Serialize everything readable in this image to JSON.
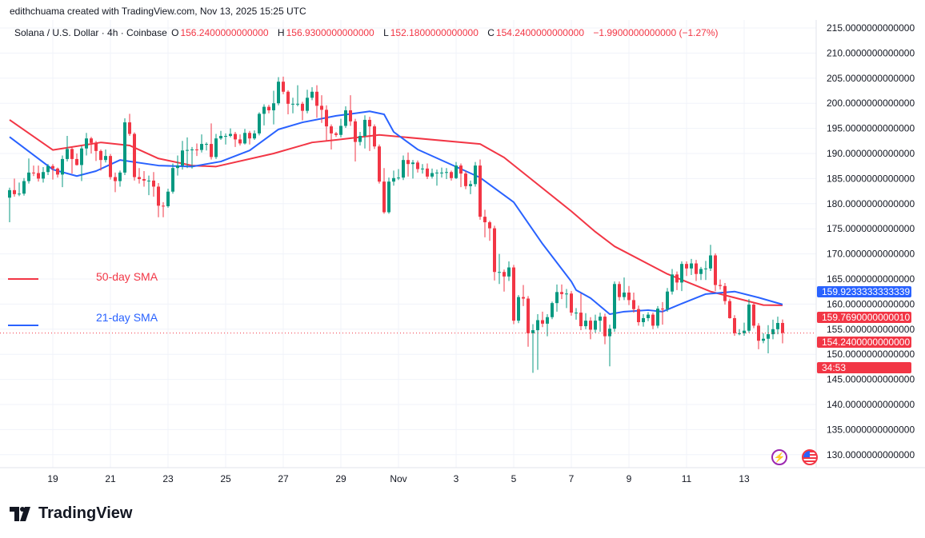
{
  "credit": "edithchuama created with TradingView.com, Nov 13, 2025 15:25 UTC",
  "legend": {
    "symbol": "Solana / U.S. Dollar · 4h · Coinbase",
    "o_label": "O",
    "o": "156.2400000000000",
    "h_label": "H",
    "h": "156.9300000000000",
    "l_label": "L",
    "l": "152.1800000000000",
    "c_label": "C",
    "c": "154.2400000000000",
    "change": "−1.9900000000000 (−1.27%)"
  },
  "indicators": {
    "sma50_label": "50-day SMA",
    "sma21_label": "21-day SMA"
  },
  "badges": {
    "sma21_value": "159.9233333333339",
    "sma50_value": "159.7690000000010",
    "last_price": "154.2400000000000",
    "countdown": "34:53"
  },
  "colors": {
    "up": "#089981",
    "down": "#F23645",
    "sma50": "#F23645",
    "sma21": "#2962FF",
    "grid": "#F0F3FA"
  },
  "icons": {
    "alert": "lightning-alert-icon",
    "flag": "us-flag-icon"
  },
  "logo": "TradingView",
  "chart_data": {
    "type": "candlestick",
    "interval": "4h",
    "ylim": [
      127,
      217
    ],
    "grid": true,
    "y_ticks": [
      "215.0000000000000",
      "210.0000000000000",
      "205.0000000000000",
      "200.0000000000000",
      "195.0000000000000",
      "190.0000000000000",
      "185.0000000000000",
      "180.0000000000000",
      "175.0000000000000",
      "170.0000000000000",
      "165.0000000000000",
      "160.0000000000000",
      "155.0000000000000",
      "150.0000000000000",
      "145.0000000000000",
      "140.0000000000000",
      "135.0000000000000",
      "130.0000000000000"
    ],
    "x_ticks": [
      "19",
      "21",
      "23",
      "25",
      "27",
      "29",
      "Nov",
      "3",
      "5",
      "7",
      "9",
      "11",
      "13"
    ],
    "last_price": 154.24,
    "candles_ohlc": [
      [
        181.2,
        183.2,
        176.3,
        182.7
      ],
      [
        182.7,
        185.0,
        181.4,
        181.9
      ],
      [
        181.9,
        184.2,
        181.5,
        182.0
      ],
      [
        182.0,
        185.1,
        181.6,
        184.5
      ],
      [
        184.5,
        189.0,
        184.0,
        186.2
      ],
      [
        186.2,
        187.6,
        185.5,
        186.1
      ],
      [
        186.1,
        187.6,
        184.4,
        185.0
      ],
      [
        185.0,
        187.3,
        184.2,
        186.3
      ],
      [
        186.3,
        187.9,
        185.7,
        187.5
      ],
      [
        187.5,
        187.9,
        184.8,
        187.0
      ],
      [
        187.0,
        187.2,
        185.2,
        185.8
      ],
      [
        185.8,
        189.6,
        183.3,
        188.9
      ],
      [
        188.9,
        193.5,
        188.4,
        190.9
      ],
      [
        190.9,
        191.4,
        186.0,
        188.9
      ],
      [
        188.9,
        190.0,
        187.6,
        187.7
      ],
      [
        187.7,
        191.5,
        184.5,
        191.0
      ],
      [
        191.0,
        194.1,
        189.6,
        193.0
      ],
      [
        193.0,
        193.3,
        190.0,
        192.1
      ],
      [
        192.1,
        192.5,
        188.5,
        190.5
      ],
      [
        190.5,
        190.8,
        186.6,
        188.7
      ],
      [
        188.7,
        190.8,
        188.2,
        189.5
      ],
      [
        189.5,
        189.9,
        184.8,
        185.3
      ],
      [
        185.3,
        186.2,
        182.3,
        184.5
      ],
      [
        184.5,
        186.6,
        183.4,
        186.2
      ],
      [
        186.2,
        197.0,
        185.7,
        196.2
      ],
      [
        196.2,
        197.9,
        193.5,
        193.9
      ],
      [
        193.9,
        194.2,
        184.6,
        185.3
      ],
      [
        185.3,
        187.1,
        184.0,
        184.9
      ],
      [
        184.9,
        186.5,
        183.4,
        184.6
      ],
      [
        184.6,
        185.6,
        181.7,
        184.6
      ],
      [
        184.6,
        186.3,
        181.4,
        183.4
      ],
      [
        183.4,
        184.1,
        177.3,
        179.6
      ],
      [
        179.6,
        180.3,
        177.3,
        179.5
      ],
      [
        179.5,
        183.0,
        179.2,
        182.4
      ],
      [
        182.4,
        188.0,
        182.0,
        187.1
      ],
      [
        187.1,
        189.6,
        185.6,
        187.6
      ],
      [
        187.6,
        192.5,
        186.8,
        190.6
      ],
      [
        190.6,
        193.2,
        187.1,
        190.7
      ],
      [
        190.7,
        191.3,
        187.0,
        190.8
      ],
      [
        190.8,
        192.0,
        189.5,
        190.7
      ],
      [
        190.7,
        193.8,
        190.2,
        191.9
      ],
      [
        191.9,
        192.2,
        190.6,
        191.9
      ],
      [
        191.9,
        196.0,
        188.8,
        189.3
      ],
      [
        189.3,
        193.9,
        188.9,
        193.0
      ],
      [
        193.0,
        194.5,
        192.7,
        193.5
      ],
      [
        193.5,
        194.0,
        191.8,
        193.5
      ],
      [
        193.5,
        195.0,
        193.2,
        193.9
      ],
      [
        193.9,
        194.3,
        191.3,
        192.8
      ],
      [
        192.8,
        193.8,
        191.6,
        192.0
      ],
      [
        192.0,
        194.9,
        191.8,
        194.1
      ],
      [
        194.1,
        194.5,
        191.8,
        193.0
      ],
      [
        193.0,
        194.6,
        192.7,
        194.0
      ],
      [
        194.0,
        198.2,
        193.6,
        197.9
      ],
      [
        197.9,
        199.8,
        195.6,
        199.3
      ],
      [
        199.3,
        199.7,
        198.0,
        198.6
      ],
      [
        198.6,
        202.5,
        195.8,
        200.0
      ],
      [
        200.0,
        205.2,
        199.6,
        204.3
      ],
      [
        204.3,
        205.3,
        201.8,
        202.3
      ],
      [
        202.3,
        202.6,
        197.8,
        199.9
      ],
      [
        199.9,
        201.1,
        198.0,
        199.9
      ],
      [
        199.9,
        203.6,
        199.4,
        199.9
      ],
      [
        199.9,
        200.3,
        196.6,
        198.5
      ],
      [
        198.5,
        202.7,
        198.0,
        201.1
      ],
      [
        201.1,
        203.2,
        200.6,
        202.3
      ],
      [
        202.3,
        203.6,
        197.1,
        199.5
      ],
      [
        199.5,
        201.6,
        196.1,
        198.7
      ],
      [
        198.7,
        199.6,
        192.5,
        195.4
      ],
      [
        195.4,
        195.8,
        190.8,
        194.0
      ],
      [
        194.0,
        194.3,
        193.3,
        193.7
      ],
      [
        193.7,
        196.9,
        193.2,
        195.5
      ],
      [
        195.5,
        199.4,
        195.1,
        198.6
      ],
      [
        198.6,
        201.6,
        195.5,
        196.4
      ],
      [
        196.4,
        196.9,
        188.4,
        192.3
      ],
      [
        192.3,
        194.3,
        191.6,
        193.5
      ],
      [
        193.5,
        197.6,
        191.0,
        196.7
      ],
      [
        196.7,
        197.3,
        190.5,
        195.4
      ],
      [
        195.4,
        195.8,
        190.9,
        191.4
      ],
      [
        191.4,
        191.8,
        184.0,
        184.4
      ],
      [
        184.4,
        187.1,
        178.0,
        178.3
      ],
      [
        178.3,
        185.2,
        178.0,
        184.4
      ],
      [
        184.4,
        186.6,
        183.6,
        185.1
      ],
      [
        185.1,
        186.9,
        184.7,
        185.2
      ],
      [
        185.2,
        189.6,
        184.7,
        188.7
      ],
      [
        188.7,
        190.2,
        185.4,
        187.9
      ],
      [
        187.9,
        188.7,
        185.0,
        188.2
      ],
      [
        188.2,
        188.6,
        186.2,
        186.9
      ],
      [
        186.9,
        187.9,
        186.0,
        187.0
      ],
      [
        187.0,
        188.0,
        184.9,
        185.4
      ],
      [
        185.4,
        187.0,
        185.0,
        186.1
      ],
      [
        186.1,
        186.8,
        183.6,
        186.2
      ],
      [
        186.2,
        187.2,
        185.2,
        186.2
      ],
      [
        186.2,
        187.1,
        184.9,
        186.3
      ],
      [
        186.3,
        186.6,
        184.6,
        185.1
      ],
      [
        185.1,
        188.3,
        184.9,
        187.6
      ],
      [
        187.6,
        188.0,
        183.3,
        186.0
      ],
      [
        186.0,
        186.5,
        182.9,
        183.5
      ],
      [
        183.5,
        184.6,
        181.9,
        183.9
      ],
      [
        183.9,
        188.3,
        183.4,
        187.6
      ],
      [
        187.6,
        188.8,
        176.8,
        177.4
      ],
      [
        177.4,
        178.8,
        173.3,
        176.3
      ],
      [
        176.3,
        176.6,
        172.6,
        175.1
      ],
      [
        175.1,
        175.6,
        164.7,
        166.4
      ],
      [
        166.4,
        170.0,
        164.0,
        166.4
      ],
      [
        166.4,
        166.9,
        162.5,
        165.5
      ],
      [
        165.5,
        168.5,
        164.6,
        167.3
      ],
      [
        167.3,
        167.8,
        156.0,
        156.7
      ],
      [
        156.7,
        161.8,
        156.2,
        161.4
      ],
      [
        161.4,
        163.8,
        159.6,
        161.1
      ],
      [
        161.1,
        161.6,
        151.5,
        154.2
      ],
      [
        154.2,
        156.0,
        146.3,
        154.8
      ],
      [
        154.8,
        158.0,
        146.9,
        156.8
      ],
      [
        156.8,
        158.5,
        155.4,
        156.1
      ],
      [
        156.1,
        158.0,
        153.6,
        157.4
      ],
      [
        157.4,
        160.5,
        157.0,
        160.2
      ],
      [
        160.2,
        163.9,
        158.5,
        162.4
      ],
      [
        162.4,
        163.9,
        161.0,
        162.0
      ],
      [
        162.0,
        163.0,
        159.2,
        162.1
      ],
      [
        162.1,
        162.6,
        157.7,
        158.3
      ],
      [
        158.3,
        159.2,
        156.9,
        158.3
      ],
      [
        158.3,
        162.1,
        154.8,
        155.6
      ],
      [
        155.6,
        158.2,
        155.0,
        156.7
      ],
      [
        156.7,
        157.4,
        153.0,
        154.9
      ],
      [
        154.9,
        157.9,
        154.3,
        156.7
      ],
      [
        156.7,
        158.3,
        154.5,
        157.5
      ],
      [
        157.5,
        158.1,
        152.0,
        153.6
      ],
      [
        153.6,
        155.9,
        147.6,
        155.1
      ],
      [
        155.1,
        164.5,
        154.5,
        164.0
      ],
      [
        164.0,
        164.5,
        160.7,
        161.4
      ],
      [
        161.4,
        165.3,
        160.8,
        162.3
      ],
      [
        162.3,
        163.6,
        159.8,
        160.8
      ],
      [
        160.8,
        162.3,
        158.3,
        159.0
      ],
      [
        159.0,
        159.7,
        155.7,
        156.4
      ],
      [
        156.4,
        158.0,
        155.5,
        157.2
      ],
      [
        157.2,
        158.4,
        156.6,
        157.9
      ],
      [
        157.9,
        158.3,
        155.0,
        155.7
      ],
      [
        155.7,
        159.6,
        155.2,
        159.1
      ],
      [
        159.1,
        160.4,
        155.9,
        159.0
      ],
      [
        159.0,
        163.2,
        158.5,
        162.5
      ],
      [
        162.5,
        167.0,
        161.9,
        165.9
      ],
      [
        165.9,
        166.5,
        162.8,
        164.3
      ],
      [
        164.3,
        168.5,
        162.6,
        168.0
      ],
      [
        168.0,
        168.5,
        165.6,
        167.1
      ],
      [
        167.1,
        169.0,
        165.8,
        168.1
      ],
      [
        168.1,
        168.8,
        164.6,
        166.0
      ],
      [
        166.0,
        167.4,
        164.8,
        167.0
      ],
      [
        167.0,
        168.6,
        164.8,
        167.1
      ],
      [
        167.1,
        171.8,
        166.6,
        169.7
      ],
      [
        169.7,
        170.1,
        162.6,
        163.8
      ],
      [
        163.8,
        164.9,
        162.9,
        163.6
      ],
      [
        163.6,
        164.2,
        159.9,
        160.6
      ],
      [
        160.6,
        161.1,
        157.1,
        157.2
      ],
      [
        157.2,
        157.8,
        153.7,
        154.2
      ],
      [
        154.2,
        155.0,
        153.8,
        154.2
      ],
      [
        154.2,
        156.3,
        153.7,
        154.7
      ],
      [
        154.7,
        161.0,
        154.3,
        159.9
      ],
      [
        159.9,
        160.4,
        155.2,
        155.7
      ],
      [
        155.7,
        156.2,
        151.0,
        152.7
      ],
      [
        152.7,
        154.2,
        152.2,
        153.1
      ],
      [
        153.1,
        155.8,
        150.2,
        154.0
      ],
      [
        154.0,
        156.9,
        153.0,
        155.0
      ],
      [
        155.0,
        157.5,
        154.0,
        156.24
      ],
      [
        156.24,
        156.93,
        152.18,
        154.24
      ]
    ],
    "series": [
      {
        "name": "50-day SMA",
        "bar_value_pairs": [
          [
            0,
            196.7
          ],
          [
            9,
            190.7
          ],
          [
            19,
            192.2
          ],
          [
            25,
            191.6
          ],
          [
            31,
            189.0
          ],
          [
            38,
            187.6
          ],
          [
            43,
            187.4
          ],
          [
            55,
            190.0
          ],
          [
            63,
            192.2
          ],
          [
            68,
            192.7
          ],
          [
            77,
            193.7
          ],
          [
            98,
            191.9
          ],
          [
            103,
            189.2
          ],
          [
            117,
            178.5
          ],
          [
            122,
            174.4
          ],
          [
            126,
            171.5
          ],
          [
            137,
            166.0
          ],
          [
            146,
            162.5
          ],
          [
            157,
            159.8
          ],
          [
            161,
            159.769
          ]
        ]
      },
      {
        "name": "21-day SMA",
        "bar_value_pairs": [
          [
            0,
            193.3
          ],
          [
            9,
            186.8
          ],
          [
            14,
            185.5
          ],
          [
            18,
            186.5
          ],
          [
            23,
            188.7
          ],
          [
            31,
            187.6
          ],
          [
            38,
            187.4
          ],
          [
            44,
            188.4
          ],
          [
            50,
            190.6
          ],
          [
            56,
            194.8
          ],
          [
            61,
            196.2
          ],
          [
            68,
            197.5
          ],
          [
            72,
            198.0
          ],
          [
            75,
            198.4
          ],
          [
            78,
            197.8
          ],
          [
            80,
            194.3
          ],
          [
            85,
            190.8
          ],
          [
            98,
            185.2
          ],
          [
            105,
            180.3
          ],
          [
            111,
            172.0
          ],
          [
            117,
            164.5
          ],
          [
            118,
            162.8
          ],
          [
            121,
            161.2
          ],
          [
            122,
            160.4
          ],
          [
            125,
            158.0
          ],
          [
            128,
            158.5
          ],
          [
            133,
            158.8
          ],
          [
            136,
            158.5
          ],
          [
            140,
            160.1
          ],
          [
            145,
            162.0
          ],
          [
            151,
            162.5
          ],
          [
            156,
            161.3
          ],
          [
            161,
            159.923
          ]
        ]
      }
    ]
  }
}
